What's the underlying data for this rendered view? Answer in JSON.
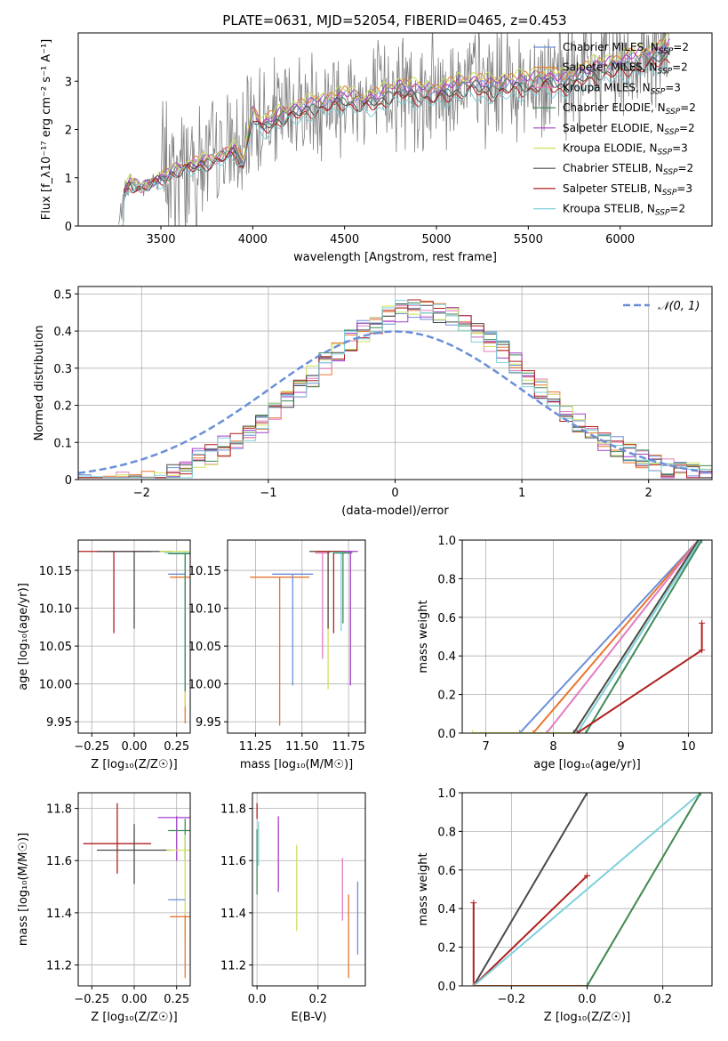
{
  "colors": {
    "chabrier_miles": "#6a8fd8",
    "salpeter_miles": "#e8772e",
    "kroupa_miles": "#e27cbf",
    "chabrier_elodie": "#3f8a5a",
    "salpeter_elodie": "#a23fc9",
    "kroupa_elodie": "#cfe05a",
    "chabrier_stelib": "#4a4a4a",
    "salpeter_stelib": "#b01f1f",
    "kroupa_stelib": "#7fd0dc",
    "data": "#808080",
    "normal": "#6a8fd8"
  },
  "legend_entries": [
    {
      "key": "chabrier_miles",
      "label": "Chabrier MILES, N",
      "sub": "SSP",
      "suffix": "=2"
    },
    {
      "key": "salpeter_miles",
      "label": "Salpeter MILES, N",
      "sub": "SSP",
      "suffix": "=2"
    },
    {
      "key": "kroupa_miles",
      "label": "Kroupa MILES, N",
      "sub": "SSP",
      "suffix": "=3"
    },
    {
      "key": "chabrier_elodie",
      "label": "Chabrier ELODIE, N",
      "sub": "SSP",
      "suffix": "=2"
    },
    {
      "key": "salpeter_elodie",
      "label": "Salpeter ELODIE, N",
      "sub": "SSP",
      "suffix": "=2"
    },
    {
      "key": "kroupa_elodie",
      "label": "Kroupa ELODIE, N",
      "sub": "SSP",
      "suffix": "=3"
    },
    {
      "key": "chabrier_stelib",
      "label": "Chabrier STELIB, N",
      "sub": "SSP",
      "suffix": "=2"
    },
    {
      "key": "salpeter_stelib",
      "label": "Salpeter STELIB, N",
      "sub": "SSP",
      "suffix": "=3"
    },
    {
      "key": "kroupa_stelib",
      "label": "Kroupa STELIB, N",
      "sub": "SSP",
      "suffix": "=2"
    }
  ],
  "chart_data": [
    {
      "id": "spectrum",
      "type": "line",
      "title": "PLATE=0631, MJD=52054, FIBERID=0465, z=0.453",
      "xlabel": "wavelength [Angstrom, rest frame]",
      "ylabel": "Flux [f_λ10⁻¹⁷ erg cm⁻² s⁻¹ A⁻¹]",
      "xlim": [
        3050,
        6500
      ],
      "ylim": [
        0,
        4
      ],
      "xticks": [
        3500,
        4000,
        4500,
        5000,
        5500,
        6000
      ],
      "yticks": [
        0,
        1,
        2,
        3
      ],
      "legend": "top-right",
      "grid": false,
      "model_shape": {
        "x": [
          3270,
          3300,
          3330,
          3400,
          3500,
          3600,
          3700,
          3800,
          3900,
          3950,
          4000,
          4050,
          4100,
          4200,
          4300,
          4400,
          4500,
          4600,
          4700,
          4800,
          4900,
          5000,
          5100,
          5200,
          5300,
          5400,
          5500,
          5600,
          5700,
          5800,
          5900,
          6000,
          6100,
          6200,
          6270
        ],
        "y": [
          0,
          0.7,
          0.9,
          0.8,
          1.0,
          1.2,
          1.3,
          1.4,
          1.6,
          1.3,
          2.4,
          2.1,
          2.2,
          2.4,
          2.5,
          2.6,
          2.7,
          2.6,
          2.7,
          2.9,
          2.8,
          2.8,
          2.9,
          3.0,
          2.9,
          3.0,
          3.0,
          3.1,
          3.0,
          3.2,
          3.3,
          3.4,
          3.5,
          3.6,
          3.7
        ]
      },
      "series": [
        {
          "name": "Chabrier MILES",
          "scale": 1.0
        },
        {
          "name": "Salpeter MILES",
          "scale": 1.03
        },
        {
          "name": "Kroupa MILES",
          "scale": 0.99
        },
        {
          "name": "Chabrier ELODIE",
          "scale": 0.98
        },
        {
          "name": "Salpeter ELODIE",
          "scale": 1.02
        },
        {
          "name": "Kroupa ELODIE",
          "scale": 1.05
        },
        {
          "name": "Chabrier STELIB",
          "scale": 0.95
        },
        {
          "name": "Salpeter STELIB",
          "scale": 0.93
        },
        {
          "name": "Kroupa STELIB",
          "scale": 0.9
        }
      ]
    },
    {
      "id": "residuals",
      "type": "step",
      "xlabel": "(data-model)/error",
      "ylabel": "Normed distribution",
      "xlim": [
        -2.5,
        2.5
      ],
      "ylim": [
        0,
        0.52
      ],
      "xticks": [
        -2,
        -1,
        0,
        1,
        2
      ],
      "yticks": [
        0.0,
        0.1,
        0.2,
        0.3,
        0.4,
        0.5
      ],
      "legend_label": "𝒩(0, 1)",
      "legend": "top-right",
      "grid": true,
      "bin_width": 0.1
    },
    {
      "id": "age_vs_z",
      "type": "errorbar",
      "xlabel": "Z [log₁₀(Z/Z☉)]",
      "ylabel": "age  [log₁₀(age/yr)]",
      "xlim": [
        -0.33,
        0.33
      ],
      "ylim": [
        9.935,
        10.19
      ],
      "xticks": [
        -0.25,
        0.0,
        0.25
      ],
      "xticklabels": [
        "−0.25",
        "0.00",
        "0.25"
      ],
      "yticks": [
        9.95,
        10.0,
        10.05,
        10.1,
        10.15
      ],
      "yticklabels": [
        "9.95",
        "10.00",
        "10.05",
        "10.10",
        "10.15"
      ],
      "grid": true,
      "points": [
        {
          "key": "salpeter_stelib",
          "x": -0.12,
          "xerr": 0.22,
          "y": 10.175,
          "ylo": 10.067,
          "yhi": 10.175
        },
        {
          "key": "chabrier_stelib",
          "x": 0.0,
          "xerr": 0.22,
          "y": 10.175,
          "ylo": 10.073,
          "yhi": 10.175
        },
        {
          "key": "chabrier_miles",
          "x": 0.25,
          "xerr": 0.05,
          "y": 10.145,
          "ylo": 10.145,
          "yhi": 10.145
        },
        {
          "key": "salpeter_miles",
          "x": 0.3,
          "xerr": 0.09,
          "y": 10.141,
          "ylo": 9.948,
          "yhi": 10.141
        },
        {
          "key": "kroupa_elodie",
          "x": 0.3,
          "xerr": 0.15,
          "y": 10.175,
          "ylo": 9.97,
          "yhi": 10.175
        },
        {
          "key": "kroupa_stelib",
          "x": 0.3,
          "xerr": 0.12,
          "y": 10.173,
          "ylo": 9.99,
          "yhi": 10.173
        },
        {
          "key": "chabrier_elodie",
          "x": 0.3,
          "xerr": 0.1,
          "y": 10.172,
          "ylo": 9.99,
          "yhi": 10.172
        }
      ]
    },
    {
      "id": "age_vs_mass",
      "type": "errorbar",
      "xlabel": "mass [log₁₀(M/M☉)]",
      "xlim": [
        11.1,
        11.84
      ],
      "ylim": [
        9.935,
        10.19
      ],
      "xticks": [
        11.25,
        11.5,
        11.75
      ],
      "xticklabels": [
        "11.25",
        "11.50",
        "11.75"
      ],
      "yticks": [
        9.95,
        10.0,
        10.05,
        10.1,
        10.15
      ],
      "yticklabels": [
        "9.95",
        "10.00",
        "10.05",
        "10.10",
        "10.15"
      ],
      "grid": true,
      "points": [
        {
          "key": "salpeter_miles",
          "x": 11.38,
          "xerr": 0.16,
          "y": 10.141,
          "ylo": 9.945,
          "yhi": 10.141
        },
        {
          "key": "chabrier_miles",
          "x": 11.45,
          "xerr": 0.11,
          "y": 10.145,
          "ylo": 9.998,
          "yhi": 10.145
        },
        {
          "key": "kroupa_miles",
          "x": 11.61,
          "xerr": 0.04,
          "y": 10.173,
          "ylo": 10.033,
          "yhi": 10.173
        },
        {
          "key": "kroupa_elodie",
          "x": 11.64,
          "xerr": 0.06,
          "y": 10.175,
          "ylo": 9.993,
          "yhi": 10.175
        },
        {
          "key": "chabrier_stelib",
          "x": 11.64,
          "xerr": 0.1,
          "y": 10.175,
          "ylo": 10.073,
          "yhi": 10.175
        },
        {
          "key": "salpeter_stelib",
          "x": 11.67,
          "xerr": 0.1,
          "y": 10.175,
          "ylo": 10.067,
          "yhi": 10.175
        },
        {
          "key": "kroupa_stelib",
          "x": 11.71,
          "xerr": 0.05,
          "y": 10.174,
          "ylo": 10.07,
          "yhi": 10.174
        },
        {
          "key": "chabrier_elodie",
          "x": 11.72,
          "xerr": 0.05,
          "y": 10.173,
          "ylo": 10.08,
          "yhi": 10.173
        },
        {
          "key": "salpeter_elodie",
          "x": 11.76,
          "xerr": 0.04,
          "y": 10.175,
          "ylo": 9.998,
          "yhi": 10.175
        }
      ]
    },
    {
      "id": "mass_weight_vs_age",
      "type": "line",
      "xlabel": "age  [log₁₀(age/yr)]",
      "ylabel": "mass weight",
      "xlim": [
        6.65,
        10.35
      ],
      "ylim": [
        0,
        1.0
      ],
      "xticks": [
        7,
        8,
        9,
        10
      ],
      "yticks": [
        0.0,
        0.2,
        0.4,
        0.6,
        0.8,
        1.0
      ],
      "yticklabels": [
        "0.0",
        "0.2",
        "0.4",
        "0.6",
        "0.8",
        "1.0"
      ],
      "grid": true,
      "series": [
        {
          "key": "chabrier_miles",
          "x": [
            7.5,
            10.15
          ],
          "y": [
            0,
            1.0
          ]
        },
        {
          "key": "salpeter_miles",
          "x": [
            7.7,
            10.15
          ],
          "y": [
            0,
            1.0
          ]
        },
        {
          "key": "kroupa_miles",
          "x": [
            7.9,
            10.15
          ],
          "y": [
            0,
            1.0
          ]
        },
        {
          "key": "kroupa_elodie",
          "x": [
            6.8,
            8.3,
            10.15
          ],
          "y": [
            0,
            0,
            1.0
          ]
        },
        {
          "key": "chabrier_stelib",
          "x": [
            8.3,
            10.15
          ],
          "y": [
            0,
            1.0
          ]
        },
        {
          "key": "kroupa_stelib",
          "x": [
            8.35,
            10.18
          ],
          "y": [
            0,
            1.0
          ]
        },
        {
          "key": "chabrier_elodie",
          "x": [
            8.48,
            10.2
          ],
          "y": [
            0,
            1.0
          ]
        },
        {
          "key": "salpeter_stelib",
          "x": [
            8.35,
            10.2,
            10.2
          ],
          "y": [
            0,
            0.43,
            0.57
          ]
        }
      ]
    },
    {
      "id": "mass_vs_z",
      "type": "errorbar",
      "xlabel": "Z [log₁₀(Z/Z☉)]",
      "ylabel": "mass [log₁₀(M/M☉)]",
      "xlim": [
        -0.33,
        0.33
      ],
      "ylim": [
        11.12,
        11.86
      ],
      "xticks": [
        -0.25,
        0.0,
        0.25
      ],
      "xticklabels": [
        "−0.25",
        "0.00",
        "0.25"
      ],
      "yticks": [
        11.2,
        11.4,
        11.6,
        11.8
      ],
      "yticklabels": [
        "11.2",
        "11.4",
        "11.6",
        "11.8"
      ],
      "grid": true,
      "points": [
        {
          "key": "salpeter_stelib",
          "x": -0.1,
          "xerr": 0.2,
          "y": 11.665,
          "ylo": 11.55,
          "yhi": 11.82
        },
        {
          "key": "chabrier_stelib",
          "x": 0.0,
          "xerr": 0.22,
          "y": 11.64,
          "ylo": 11.51,
          "yhi": 11.74
        },
        {
          "key": "salpeter_elodie",
          "x": 0.25,
          "xerr": 0.11,
          "y": 11.765,
          "ylo": 11.6,
          "yhi": 11.77
        },
        {
          "key": "chabrier_elodie",
          "x": 0.3,
          "xerr": 0.1,
          "y": 11.715,
          "ylo": 11.6,
          "yhi": 11.76
        },
        {
          "key": "kroupa_elodie",
          "x": 0.3,
          "xerr": 0.11,
          "y": 11.64,
          "ylo": 11.3,
          "yhi": 11.7
        },
        {
          "key": "chabrier_miles",
          "x": 0.25,
          "xerr": 0.05,
          "y": 11.45,
          "ylo": 11.45,
          "yhi": 11.45
        },
        {
          "key": "salpeter_miles",
          "x": 0.3,
          "xerr": 0.09,
          "y": 11.385,
          "ylo": 11.15,
          "yhi": 11.39
        }
      ]
    },
    {
      "id": "mass_vs_ebv",
      "type": "errorbar",
      "xlabel": "E(B-V)",
      "xlim": [
        -0.015,
        0.355
      ],
      "ylim": [
        11.12,
        11.86
      ],
      "xticks": [
        0.0,
        0.2
      ],
      "xticklabels": [
        "0.0",
        "0.2"
      ],
      "yticks": [
        11.2,
        11.4,
        11.6,
        11.8
      ],
      "yticklabels": [
        "11.2",
        "11.4",
        "11.6",
        "11.8"
      ],
      "grid": true,
      "points": [
        {
          "key": "salpeter_stelib",
          "x": 0.0,
          "ylo": 11.76,
          "yhi": 11.82
        },
        {
          "key": "chabrier_elodie",
          "x": 0.0,
          "ylo": 11.47,
          "yhi": 11.72
        },
        {
          "key": "kroupa_stelib",
          "x": 0.005,
          "ylo": 11.58,
          "yhi": 11.75
        },
        {
          "key": "salpeter_elodie",
          "x": 0.07,
          "ylo": 11.48,
          "yhi": 11.77
        },
        {
          "key": "kroupa_elodie",
          "x": 0.13,
          "ylo": 11.33,
          "yhi": 11.66
        },
        {
          "key": "kroupa_miles",
          "x": 0.28,
          "ylo": 11.37,
          "yhi": 11.61
        },
        {
          "key": "salpeter_miles",
          "x": 0.3,
          "ylo": 11.15,
          "yhi": 11.47
        },
        {
          "key": "chabrier_miles",
          "x": 0.33,
          "ylo": 11.24,
          "yhi": 11.52
        }
      ]
    },
    {
      "id": "mass_weight_vs_z",
      "type": "line",
      "xlabel": "Z [log₁₀(Z/Z☉)]",
      "ylabel": "mass weight",
      "xlim": [
        -0.33,
        0.33
      ],
      "ylim": [
        0,
        1.0
      ],
      "xticks": [
        -0.2,
        0.0,
        0.2
      ],
      "xticklabels": [
        "−0.2",
        "0.0",
        "0.2"
      ],
      "yticks": [
        0.0,
        0.2,
        0.4,
        0.6,
        0.8,
        1.0
      ],
      "yticklabels": [
        "0.0",
        "0.2",
        "0.4",
        "0.6",
        "0.8",
        "1.0"
      ],
      "grid": true,
      "series": [
        {
          "key": "chabrier_stelib",
          "x": [
            -0.3,
            0.0
          ],
          "y": [
            0,
            1.0
          ]
        },
        {
          "key": "salpeter_stelib",
          "x": [
            -0.3,
            0.0,
            0.0
          ],
          "y": [
            0,
            0.57,
            0.57
          ]
        },
        {
          "key": "salpeter_stelib",
          "x": [
            -0.3,
            -0.3
          ],
          "y": [
            0,
            0.43
          ]
        },
        {
          "key": "kroupa_stelib",
          "x": [
            -0.3,
            0.3
          ],
          "y": [
            0,
            1.0
          ]
        },
        {
          "key": "salpeter_miles",
          "x": [
            -0.3,
            0.0
          ],
          "y": [
            0,
            0
          ]
        },
        {
          "key": "kroupa_elodie",
          "x": [
            0.0,
            0.3
          ],
          "y": [
            0,
            1.0
          ]
        },
        {
          "key": "chabrier_elodie",
          "x": [
            0.0,
            0.3
          ],
          "y": [
            0,
            1.0
          ]
        }
      ]
    }
  ]
}
